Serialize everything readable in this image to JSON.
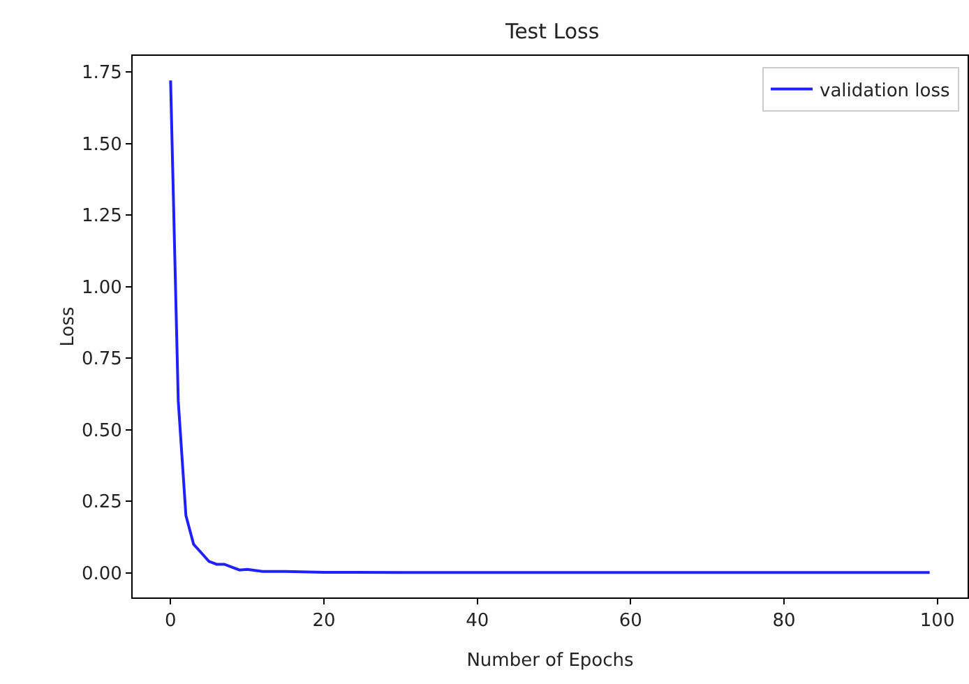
{
  "chart_data": {
    "type": "line",
    "title": "Test Loss",
    "xlabel": "Number of Epochs",
    "ylabel": "Loss",
    "x": [
      0,
      1,
      2,
      3,
      4,
      5,
      6,
      7,
      8,
      9,
      10,
      12,
      15,
      20,
      30,
      40,
      50,
      60,
      70,
      80,
      90,
      99
    ],
    "series": [
      {
        "name": "validation loss",
        "color": "#2020ff",
        "values": [
          1.72,
          0.6,
          0.2,
          0.1,
          0.07,
          0.04,
          0.03,
          0.03,
          0.02,
          0.01,
          0.012,
          0.005,
          0.005,
          0.002,
          0.001,
          0.001,
          0.001,
          0.001,
          0.001,
          0.001,
          0.001,
          0.001
        ]
      }
    ],
    "xlim": [
      -4.95,
      103.95
    ],
    "xticks": [
      0,
      20,
      40,
      60,
      80,
      100
    ],
    "ylim": [
      -0.086,
      1.806
    ],
    "yticks": [
      {
        "value": 0,
        "label": "0.00"
      },
      {
        "value": 0.25,
        "label": "0.25"
      },
      {
        "value": 0.5,
        "label": "0.50"
      },
      {
        "value": 0.75,
        "label": "0.75"
      },
      {
        "value": 1,
        "label": "1.00"
      },
      {
        "value": 1.25,
        "label": "1.25"
      },
      {
        "value": 1.5,
        "label": "1.50"
      },
      {
        "value": 1.75,
        "label": "1.75"
      }
    ],
    "grid": false,
    "legend": "top right",
    "marker": "none",
    "line_style": "solid"
  }
}
